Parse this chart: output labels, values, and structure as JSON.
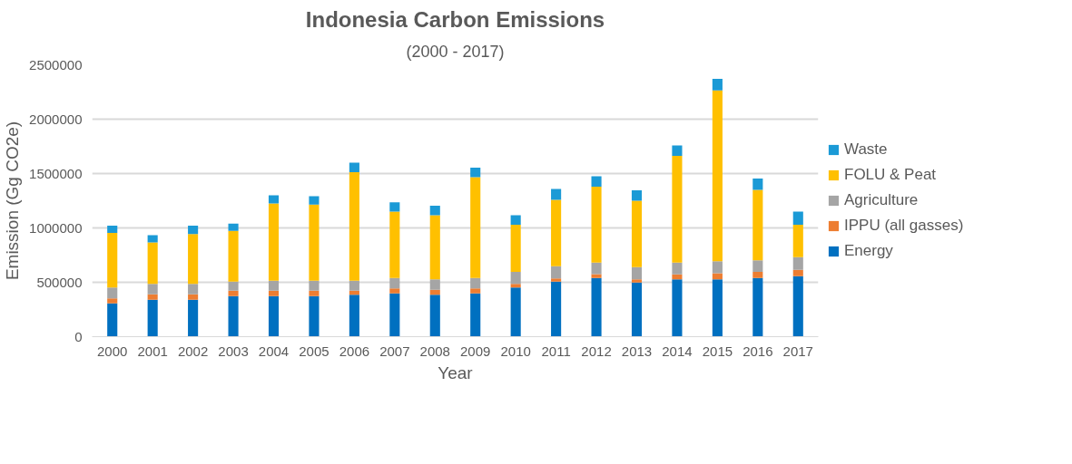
{
  "chart_data": {
    "type": "bar",
    "title": "Indonesia Carbon Emissions",
    "subtitle": "(2000 - 2017)",
    "xlabel": "Year",
    "ylabel": "Emission (Gg CO2e)",
    "categories": [
      "2000",
      "2001",
      "2002",
      "2003",
      "2004",
      "2005",
      "2006",
      "2007",
      "2008",
      "2009",
      "2010",
      "2011",
      "2012",
      "2013",
      "2014",
      "2015",
      "2016",
      "2017"
    ],
    "stacked": true,
    "grid": "y",
    "legend": "right",
    "ylim": [
      0,
      2500000
    ],
    "yticks": [
      0,
      500000,
      1000000,
      1500000,
      2000000,
      2500000
    ],
    "series": [
      {
        "name": "Energy",
        "color": "#0070c0",
        "values": [
          307000,
          340000,
          340000,
          373000,
          373000,
          373000,
          386000,
          398000,
          386000,
          398000,
          452000,
          506000,
          539000,
          497000,
          527000,
          527000,
          539000,
          557000
        ]
      },
      {
        "name": "IPPU (all gasses)",
        "color": "#ed7d31",
        "values": [
          45000,
          49000,
          49000,
          49000,
          49000,
          49000,
          36000,
          45000,
          45000,
          45000,
          33000,
          30000,
          36000,
          30000,
          45000,
          57000,
          57000,
          57000
        ]
      },
      {
        "name": "Agriculture",
        "color": "#a5a5a5",
        "values": [
          100000,
          96000,
          96000,
          84000,
          93000,
          93000,
          93000,
          96000,
          96000,
          96000,
          111000,
          112000,
          106000,
          112000,
          109000,
          109000,
          106000,
          118000
        ]
      },
      {
        "name": "FOLU & Peat",
        "color": "#ffc000",
        "values": [
          503000,
          382000,
          458000,
          467000,
          711000,
          699000,
          997000,
          612000,
          590000,
          928000,
          434000,
          611000,
          699000,
          611000,
          982000,
          1572000,
          647000,
          298000
        ]
      },
      {
        "name": "Waste",
        "color": "#1b9ad6",
        "values": [
          66000,
          67000,
          78000,
          66000,
          75000,
          78000,
          87000,
          84000,
          88000,
          87000,
          87000,
          99000,
          96000,
          96000,
          96000,
          105000,
          106000,
          121000
        ]
      }
    ]
  }
}
